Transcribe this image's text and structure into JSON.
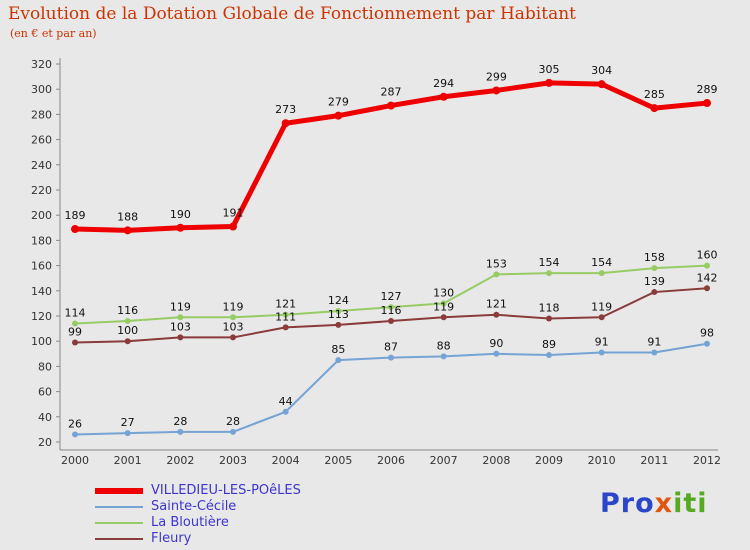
{
  "title": "Evolution de la Dotation Globale de Fonctionnement par Habitant",
  "subtitle": "(en € et par an)",
  "colors": {
    "background": "#e8e8e8",
    "title": "#cc3300",
    "axis": "#888888",
    "tick_text": "#333333",
    "label_text": "#111111",
    "legend_text": "#3d35cc"
  },
  "chart_data": {
    "type": "line",
    "x": [
      2000,
      2001,
      2002,
      2003,
      2004,
      2005,
      2006,
      2007,
      2008,
      2009,
      2010,
      2011,
      2012
    ],
    "series": [
      {
        "name": "VILLEDIEU-LES-POêLES",
        "color": "#ee0000",
        "width": 5,
        "values": [
          189,
          188,
          190,
          191,
          273,
          279,
          287,
          294,
          299,
          305,
          304,
          285,
          289
        ]
      },
      {
        "name": "Sainte-Cécile",
        "color": "#74a3d4",
        "width": 2,
        "values": [
          26,
          27,
          28,
          28,
          44,
          85,
          87,
          88,
          90,
          89,
          91,
          91,
          98
        ]
      },
      {
        "name": "La Bloutière",
        "color": "#97cc64",
        "width": 2,
        "values": [
          114,
          116,
          119,
          119,
          121,
          124,
          127,
          130,
          153,
          154,
          154,
          158,
          160
        ]
      },
      {
        "name": "Fleury",
        "color": "#8a3b3b",
        "width": 2,
        "values": [
          99,
          100,
          103,
          103,
          111,
          113,
          116,
          119,
          121,
          118,
          119,
          139,
          142
        ]
      }
    ],
    "ylim": [
      20,
      320
    ],
    "ytick_step": 20,
    "grid": false,
    "legend_position": "bottom-left"
  },
  "logo": {
    "parts": [
      {
        "text": "Pro",
        "color": "#2b46c8"
      },
      {
        "text": "x",
        "color": "#e05510"
      },
      {
        "text": "iti",
        "color": "#55aa22"
      }
    ]
  }
}
